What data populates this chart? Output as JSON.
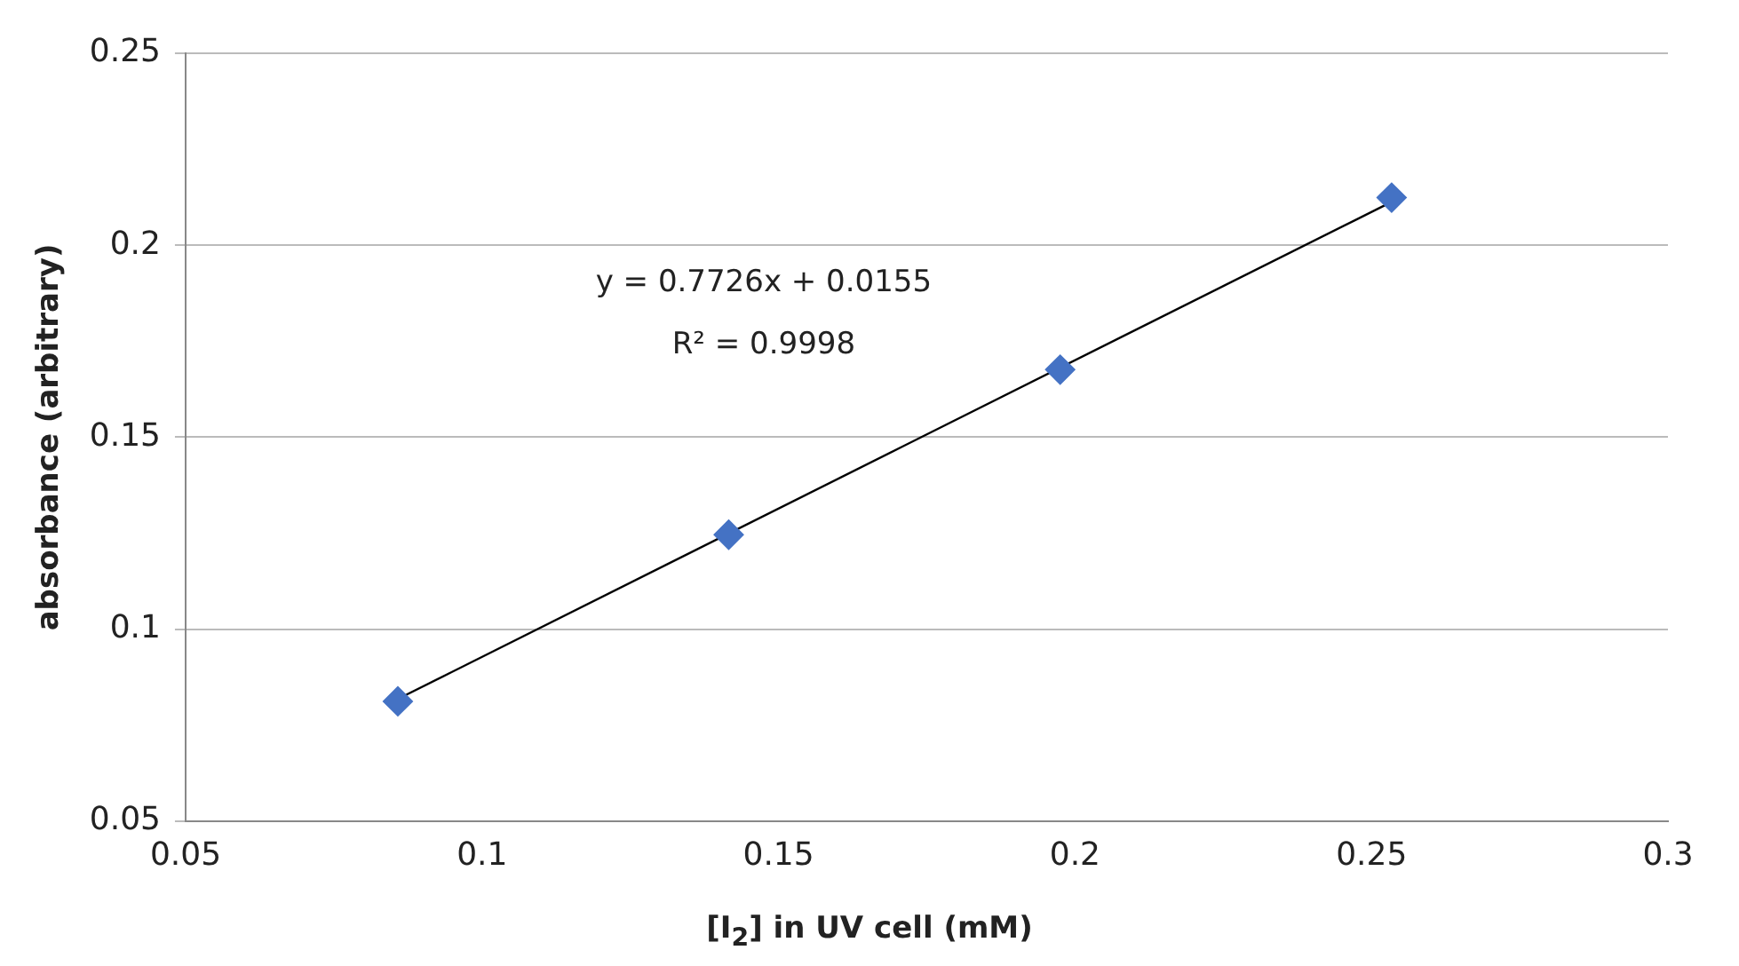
{
  "chart_data": {
    "type": "scatter",
    "xlabel": "[I$_{2}$] in UV cell (mM)",
    "ylabel": "absorbance (arbitrary)",
    "annotations": [
      "y = 0.7726x + 0.0155",
      "R² = 0.9998"
    ],
    "series": [
      {
        "color": "#4472c4",
        "marker": "diamond",
        "x": [
          0.0858,
          0.1416,
          0.1975,
          0.2534
        ],
        "values": [
          0.0812,
          0.1246,
          0.1676,
          0.2124
        ]
      },
      {
        "type": "line",
        "marker": "none",
        "color": "#000000",
        "x": [
          0.0858,
          0.2534
        ],
        "values": [
          0.0818,
          0.2113
        ]
      }
    ],
    "xlim": [
      0.05,
      0.3
    ],
    "xticks": [
      0.05,
      0.1,
      0.15,
      0.2,
      0.25,
      0.3
    ],
    "ylim": [
      0.05,
      0.25
    ],
    "yticks": [
      0.05,
      0.1,
      0.15,
      0.2,
      0.25
    ],
    "grid": "y",
    "legend": false
  }
}
